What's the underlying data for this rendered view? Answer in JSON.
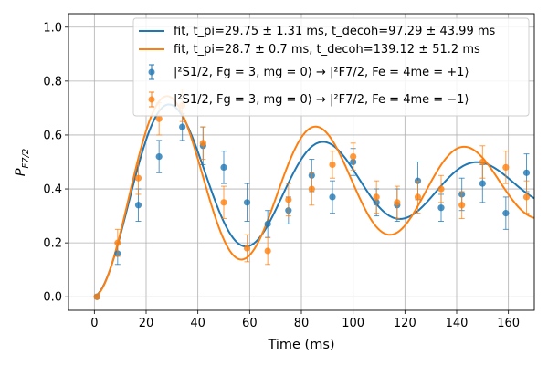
{
  "chart_data": {
    "type": "scatter",
    "title": "",
    "xlabel": "Time (ms)",
    "ylabel_main": "P",
    "ylabel_sub": "F7/2",
    "xlim": [
      -10,
      170
    ],
    "ylim": [
      -0.05,
      1.05
    ],
    "xticks": [
      0,
      20,
      40,
      60,
      80,
      100,
      120,
      140,
      160
    ],
    "yticks": [
      0.0,
      0.2,
      0.4,
      0.6,
      0.8,
      1.0
    ],
    "grid": true,
    "legend_position": "top-right",
    "legend": {
      "fit1": "fit, t_pi=29.75 ± 1.31 ms, t_decoh=97.29 ± 43.99 ms",
      "fit2": "fit, t_pi=28.7 ± 0.7 ms, t_decoh=139.12 ± 51.2 ms",
      "data1": "|²S1/2, Fg = 3, mg = 0⟩ → |²F7/2, Fe = 4me = +1⟩",
      "data2": "|²S1/2, Fg = 3, mg = 0⟩ → |²F7/2, Fe = 4me = −1⟩"
    },
    "series": [
      {
        "name": "m_e = +1 data",
        "color": "#1f77b4",
        "x": [
          1,
          9,
          17,
          25,
          34,
          42,
          50,
          59,
          67,
          75,
          84,
          92,
          100,
          109,
          117,
          125,
          134,
          142,
          150,
          159,
          167
        ],
        "y": [
          0.0,
          0.16,
          0.34,
          0.52,
          0.63,
          0.56,
          0.48,
          0.35,
          0.27,
          0.32,
          0.45,
          0.37,
          0.5,
          0.35,
          0.34,
          0.43,
          0.33,
          0.38,
          0.42,
          0.31,
          0.46
        ],
        "err": [
          0.0,
          0.04,
          0.06,
          0.06,
          0.05,
          0.07,
          0.06,
          0.07,
          0.05,
          0.05,
          0.06,
          0.06,
          0.05,
          0.05,
          0.06,
          0.07,
          0.05,
          0.06,
          0.07,
          0.06,
          0.07
        ]
      },
      {
        "name": "m_e = -1 data",
        "color": "#ff7f0e",
        "x": [
          1,
          9,
          17,
          25,
          34,
          42,
          50,
          59,
          67,
          75,
          84,
          92,
          100,
          109,
          117,
          125,
          134,
          142,
          150,
          159,
          167
        ],
        "y": [
          0.0,
          0.2,
          0.44,
          0.66,
          0.71,
          0.57,
          0.35,
          0.18,
          0.17,
          0.36,
          0.4,
          0.49,
          0.52,
          0.37,
          0.35,
          0.37,
          0.4,
          0.34,
          0.5,
          0.48,
          0.37
        ],
        "err": [
          0.0,
          0.05,
          0.06,
          0.06,
          0.06,
          0.06,
          0.06,
          0.05,
          0.05,
          0.06,
          0.06,
          0.05,
          0.05,
          0.06,
          0.06,
          0.06,
          0.05,
          0.05,
          0.06,
          0.06,
          0.06
        ]
      }
    ],
    "fits": [
      {
        "name": "fit 1",
        "color": "#1f77b4",
        "t_pi": 29.75,
        "t_decoh": 97.29,
        "amplitude": 0.41
      },
      {
        "name": "fit 2",
        "color": "#ff7f0e",
        "t_pi": 28.7,
        "t_decoh": 139.12,
        "amplitude": 0.41
      }
    ]
  }
}
